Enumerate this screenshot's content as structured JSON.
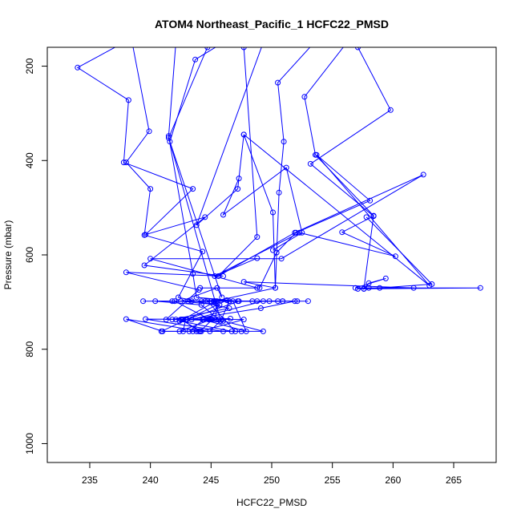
{
  "chart_data": {
    "type": "line",
    "title": "ATOM4 Northeast_Pacific_1 HCFC22_PMSD",
    "xlabel": "HCFC22_PMSD",
    "ylabel": "Pressure (mbar)",
    "xlim": [
      231.5,
      268.5
    ],
    "ylim": [
      1040,
      160
    ],
    "y_reversed": true,
    "x_ticks": [
      235,
      240,
      245,
      250,
      255,
      260,
      265
    ],
    "y_ticks": [
      200,
      400,
      600,
      800,
      1000
    ],
    "grid": false,
    "legend": "none",
    "series_color": "#0000ff",
    "marker": "open-circle",
    "series": [
      {
        "points": [
          [
            237.8,
            150
          ],
          [
            234.0,
            203
          ],
          [
            238.2,
            272
          ],
          [
            237.8,
            404
          ],
          [
            243.5,
            460
          ],
          [
            239.6,
            557
          ],
          [
            244.5,
            520
          ],
          [
            239.5,
            622
          ],
          [
            246.0,
            645
          ],
          [
            238.0,
            637
          ],
          [
            244.0,
            674
          ],
          [
            241.3,
            737
          ],
          [
            246.6,
            735
          ],
          [
            245.0,
            736
          ],
          [
            242.5,
            737
          ],
          [
            244.2,
            762
          ],
          [
            238.0,
            736
          ],
          [
            241.0,
            762
          ],
          [
            247.5,
            762
          ],
          [
            243.5,
            762
          ]
        ]
      },
      {
        "points": [
          [
            238.5,
            150
          ],
          [
            239.9,
            338
          ],
          [
            238.0,
            404
          ],
          [
            240.0,
            460
          ],
          [
            239.5,
            558
          ],
          [
            244.3,
            593
          ],
          [
            242.3,
            690
          ],
          [
            246.5,
            713
          ],
          [
            241.8,
            737
          ],
          [
            245.4,
            737
          ],
          [
            245.4,
            698
          ],
          [
            242.7,
            737
          ],
          [
            244.4,
            737
          ],
          [
            243.2,
            762
          ],
          [
            246.7,
            762
          ],
          [
            242.4,
            740
          ],
          [
            249.1,
            713
          ],
          [
            251.9,
            698
          ],
          [
            244.2,
            698
          ],
          [
            239.4,
            698
          ]
        ]
      },
      {
        "points": [
          [
            242.1,
            150
          ],
          [
            241.5,
            348
          ],
          [
            243.5,
            640
          ],
          [
            243.8,
            690
          ],
          [
            247.3,
            698
          ],
          [
            243.0,
            737
          ],
          [
            245.6,
            737
          ],
          [
            244.2,
            706
          ],
          [
            240.4,
            698
          ],
          [
            244.7,
            698
          ],
          [
            247.0,
            762
          ],
          [
            244.0,
            762
          ],
          [
            242.6,
            737
          ],
          [
            246.0,
            740
          ],
          [
            249.3,
            762
          ],
          [
            240.9,
            762
          ],
          [
            243.0,
            737
          ],
          [
            246.3,
            696
          ],
          [
            243.4,
            698
          ],
          [
            245.2,
            698
          ]
        ]
      },
      {
        "points": [
          [
            244.7,
            160
          ],
          [
            241.5,
            352
          ],
          [
            245.9,
            690
          ],
          [
            245.5,
            670
          ],
          [
            242.5,
            698
          ],
          [
            245.7,
            706
          ],
          [
            244.8,
            737
          ],
          [
            242.1,
            737
          ],
          [
            245.1,
            737
          ],
          [
            244.1,
            762
          ],
          [
            247.7,
            737
          ],
          [
            239.6,
            736
          ],
          [
            246.0,
            762
          ],
          [
            242.7,
            762
          ],
          [
            242.9,
            737
          ],
          [
            244.9,
            737
          ],
          [
            242.0,
            698
          ],
          [
            250.5,
            698
          ],
          [
            241.8,
            698
          ],
          [
            245.5,
            698
          ]
        ]
      },
      {
        "points": [
          [
            246.0,
            150
          ],
          [
            243.7,
            186
          ],
          [
            241.6,
            360
          ],
          [
            245.8,
            740
          ],
          [
            246.5,
            698
          ],
          [
            243.1,
            698
          ],
          [
            245.3,
            698
          ],
          [
            249.3,
            698
          ],
          [
            243.4,
            737
          ],
          [
            245.9,
            737
          ],
          [
            244.9,
            762
          ],
          [
            243.8,
            762
          ],
          [
            242.4,
            762
          ],
          [
            245.0,
            737
          ],
          [
            244.3,
            737
          ],
          [
            247.9,
            762
          ],
          [
            246.8,
            698
          ],
          [
            248.4,
            698
          ],
          [
            250.9,
            698
          ],
          [
            245.0,
            698
          ]
        ]
      },
      {
        "points": [
          [
            251.2,
            150
          ],
          [
            249.3,
            150
          ],
          [
            243.8,
            537
          ],
          [
            247.2,
            460
          ],
          [
            247.7,
            345
          ],
          [
            250.1,
            510
          ],
          [
            250.3,
            670
          ],
          [
            245.3,
            698
          ],
          [
            250.9,
            698
          ],
          [
            252.1,
            698
          ],
          [
            253.0,
            698
          ],
          [
            249.8,
            698
          ],
          [
            244.5,
            698
          ],
          [
            248.8,
            698
          ],
          [
            247.2,
            698
          ]
        ]
      },
      {
        "points": [
          [
            253.5,
            150
          ],
          [
            250.5,
            235
          ],
          [
            251.0,
            360
          ],
          [
            250.6,
            468
          ],
          [
            250.3,
            670
          ],
          [
            247.7,
            657
          ],
          [
            261.7,
            670
          ],
          [
            258.0,
            670
          ],
          [
            257.6,
            672
          ],
          [
            258.9,
            670
          ],
          [
            263.2,
            662
          ],
          [
            257.8,
            520
          ]
        ]
      },
      {
        "points": [
          [
            256.2,
            150
          ],
          [
            252.7,
            265
          ],
          [
            253.6,
            388
          ],
          [
            258.4,
            517
          ],
          [
            257.6,
            672
          ],
          [
            258.0,
            660
          ],
          [
            259.4,
            650
          ],
          [
            256.9,
            670
          ],
          [
            267.2,
            670
          ],
          [
            257.1,
            672
          ]
        ]
      },
      {
        "points": [
          [
            257.1,
            160
          ],
          [
            259.8,
            293
          ],
          [
            253.2,
            407
          ],
          [
            258.4,
            518
          ],
          [
            255.8,
            552
          ],
          [
            260.2,
            603
          ],
          [
            252.3,
            553
          ],
          [
            245.3,
            645
          ],
          [
            248.8,
            607
          ]
        ]
      },
      {
        "points": [
          [
            247.7,
            160
          ],
          [
            248.8,
            562
          ],
          [
            245.6,
            645
          ],
          [
            251.9,
            553
          ],
          [
            262.5,
            430
          ],
          [
            250.8,
            608
          ],
          [
            240.0,
            608
          ],
          [
            248.8,
            670
          ]
        ]
      },
      {
        "points": [
          [
            247.3,
            438
          ],
          [
            246.0,
            515
          ],
          [
            251.2,
            415
          ],
          [
            252.5,
            553
          ],
          [
            250.1,
            590
          ]
        ]
      },
      {
        "points": [
          [
            247.7,
            345
          ],
          [
            263.0,
            665
          ],
          [
            253.7,
            388
          ],
          [
            258.1,
            485
          ],
          [
            252.0,
            553
          ],
          [
            250.4,
            595
          ],
          [
            249.0,
            670
          ],
          [
            244.1,
            670
          ]
        ]
      }
    ]
  }
}
